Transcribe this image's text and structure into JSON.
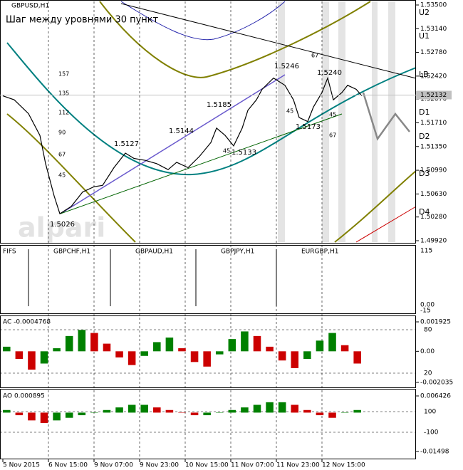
{
  "chart_data": [
    {
      "type": "line",
      "title": "GBPUSD,H1",
      "subtitle": "Шаг между уровнями 30 пункт",
      "watermark": "alpari",
      "x": [
        0,
        4,
        9,
        13,
        15,
        18,
        20,
        24,
        28,
        32,
        35,
        39,
        43,
        46,
        50,
        54,
        58,
        61,
        65,
        69,
        73,
        75,
        78,
        81,
        84,
        86,
        89,
        91,
        95,
        99,
        102,
        104,
        107,
        109,
        112,
        114,
        116,
        119,
        121,
        124,
        126
      ],
      "values": [
        1.5212,
        1.5206,
        1.5185,
        1.5152,
        1.5109,
        1.506,
        1.5033,
        1.5044,
        1.5066,
        1.5074,
        1.5076,
        1.5103,
        1.5125,
        1.5117,
        1.5114,
        1.5109,
        1.51,
        1.5111,
        1.5103,
        1.512,
        1.5141,
        1.5163,
        1.5152,
        1.5136,
        1.5163,
        1.519,
        1.5206,
        1.5222,
        1.5239,
        1.5228,
        1.5206,
        1.5179,
        1.5173,
        1.5195,
        1.5217,
        1.5239,
        1.5206,
        1.5217,
        1.5228,
        1.5222,
        1.5212
      ],
      "color": "#000000",
      "xlim": [
        -1,
        144
      ],
      "xticks": [
        {
          "value": 0,
          "label": "5 Nov 2015"
        },
        {
          "value": 16,
          "label": "6 Nov 15:00"
        },
        {
          "value": 32,
          "label": "9 Nov 07:00"
        },
        {
          "value": 48,
          "label": "9 Nov 23:00"
        },
        {
          "value": 64,
          "label": "10 Nov 15:00"
        },
        {
          "value": 80,
          "label": "11 Nov 07:00"
        },
        {
          "value": 96,
          "label": "11 Nov 23:00"
        },
        {
          "value": 112,
          "label": "12 Nov 15:00"
        }
      ],
      "ylim": [
        1.4992,
        1.535
      ],
      "yticks": [
        {
          "value": 1.535,
          "label": "1.53500"
        },
        {
          "value": 1.5314,
          "label": "1.53140"
        },
        {
          "value": 1.5278,
          "label": "1.52780"
        },
        {
          "value": 1.5242,
          "label": "1.52420"
        },
        {
          "value": 1.5207,
          "label": "1.52070"
        },
        {
          "value": 1.5171,
          "label": "1.51710"
        },
        {
          "value": 1.5135,
          "label": "1.51350"
        },
        {
          "value": 1.5099,
          "label": "1.50990"
        },
        {
          "value": 1.5063,
          "label": "1.50630"
        },
        {
          "value": 1.5028,
          "label": "1.50280"
        },
        {
          "value": 1.4992,
          "label": "1.49920"
        }
      ],
      "current_price": {
        "value": 1.52132,
        "label": "1.52132"
      },
      "levels": [
        "U2",
        "U1",
        "LB",
        "D1",
        "D2",
        "D3",
        "D4"
      ],
      "annotations": [
        "1.5026",
        "1.5127",
        "1.5144",
        "1.5185",
        "1.5133",
        "1.5246",
        "1.5173",
        "1.5240",
        "157",
        "135",
        "112",
        "90",
        "67",
        "45",
        "67",
        "45",
        "45",
        "45",
        "67"
      ],
      "grid": true
    },
    {
      "type": "multi",
      "title": "FIFS",
      "symbols": [
        "GBPCHF,H1",
        "GBPAUD,H1",
        "GBPJPY,H1",
        "EURGBP,H1"
      ],
      "axis_labels": [
        "115",
        "0.00",
        "-15"
      ]
    },
    {
      "type": "bar",
      "title": "AC -0.0004768",
      "values": [
        0.0003,
        -0.0005,
        -0.0012,
        -0.0008,
        0.0002,
        0.001,
        0.0014,
        0.0012,
        0.0005,
        -0.0004,
        -0.0009,
        -0.0003,
        0.0006,
        0.0009,
        0.0002,
        -0.0007,
        -0.001,
        -0.0002,
        0.0008,
        0.0013,
        0.001,
        0.0003,
        -0.0006,
        -0.0011,
        -0.0005,
        0.0007,
        0.0012,
        0.0004,
        -0.0008
      ],
      "ylim": [
        -0.002035,
        0.001925
      ],
      "yticks": [
        {
          "value": 0.001925,
          "label": "0.001925"
        },
        {
          "value": 0,
          "label": "0.00"
        },
        {
          "value": -0.002035,
          "label": "-0.002035"
        }
      ],
      "level_labels": [
        "80",
        "20"
      ]
    },
    {
      "type": "bar",
      "title": "AO 0.000895",
      "values": [
        0.001,
        -0.001,
        -0.003,
        -0.004,
        -0.003,
        -0.002,
        -0.001,
        0,
        0.001,
        0.002,
        0.003,
        0.003,
        0.002,
        0.001,
        0,
        -0.001,
        -0.001,
        0,
        0.001,
        0.002,
        0.003,
        0.004,
        0.004,
        0.003,
        0.001,
        -0.001,
        -0.002,
        0,
        0.001
      ],
      "ylim": [
        -0.01498,
        0.006426
      ],
      "yticks": [
        {
          "value": 0.006426,
          "label": "0.006426"
        },
        {
          "value": -0.01498,
          "label": "-0.01498"
        }
      ],
      "level_labels": [
        "100",
        "-100"
      ]
    }
  ]
}
